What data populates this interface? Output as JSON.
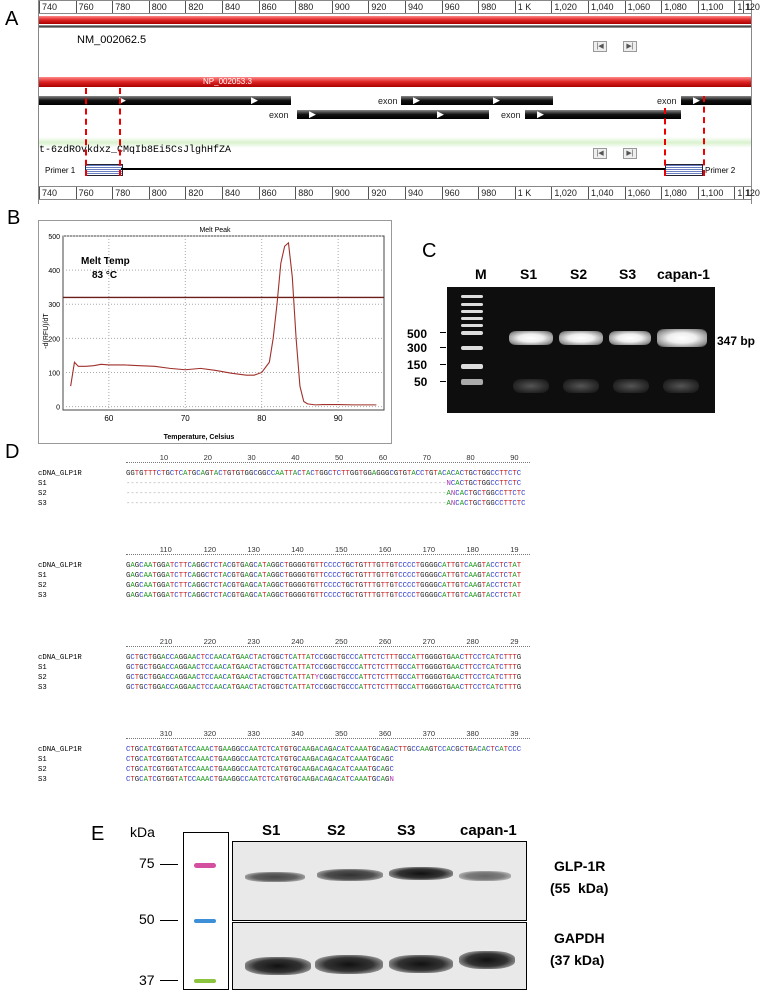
{
  "panel_labels": {
    "a": "A",
    "b": "B",
    "c": "C",
    "d": "D",
    "e": "E"
  },
  "panelA": {
    "ruler_ticks": [
      "740",
      "760",
      "780",
      "800",
      "820",
      "840",
      "860",
      "880",
      "900",
      "920",
      "940",
      "960",
      "980",
      "1 K",
      "1,020",
      "1,040",
      "1,060",
      "1,080",
      "1,100",
      "1,120"
    ],
    "ruler_edge_tick": "1",
    "transcript_label": "NM_002062.5",
    "protein_label": "NP_002053.3",
    "exon_label": "exon",
    "primer_track_label": "t-6zdROvkdxz_CMqIb8Ei5CsJlghHfZA",
    "primer1": "Primer 1",
    "primer2": "Primer 2"
  },
  "panelB": {
    "title": "Melt Peak",
    "xlabel": "Temperature, Celsius",
    "ylabel": "-d(RFU)/dT",
    "annotation_line1": "Melt Temp",
    "annotation_line2": "83 °C"
  },
  "chart_data": {
    "type": "line",
    "title": "Melt Peak",
    "xlabel": "Temperature, Celsius",
    "ylabel": "-d(RFU)/dT",
    "xlim": [
      54,
      96
    ],
    "ylim": [
      -10,
      500
    ],
    "xticks": [
      60,
      70,
      80,
      90
    ],
    "yticks": [
      0,
      100,
      200,
      300,
      400,
      500
    ],
    "threshold": 320,
    "series": [
      {
        "color": "#a0302a",
        "x": [
          55,
          55.5,
          56,
          57,
          58,
          59,
          60,
          62,
          64,
          66,
          68,
          70,
          72,
          74,
          76,
          78,
          79,
          80,
          81,
          81.5,
          82,
          82.5,
          83,
          83.5,
          84,
          84.5,
          85,
          85.5,
          86,
          87,
          88,
          90,
          92,
          95
        ],
        "y": [
          60,
          130,
          118,
          118,
          120,
          124,
          122,
          122,
          120,
          118,
          112,
          108,
          112,
          106,
          98,
          92,
          92,
          100,
          130,
          200,
          300,
          420,
          470,
          480,
          380,
          200,
          60,
          15,
          8,
          5,
          6,
          6,
          5,
          5
        ]
      }
    ]
  },
  "panelC": {
    "lanes": [
      "M",
      "S1",
      "S2",
      "S3",
      "capan-1"
    ],
    "markers": [
      "500",
      "300",
      "150",
      "50"
    ],
    "band_size": "347 bp"
  },
  "panelD": {
    "blocks": [
      {
        "ruler_numbers": [
          "10",
          "20",
          "30",
          "40",
          "50",
          "60",
          "70",
          "80",
          "90"
        ],
        "rows": [
          {
            "name": "cDNA_GLP1R",
            "seq": "GGTGTTTCTGCTCATGCAGTACTGTGTGGCGGCCAATTACTACTGGCTCTTGGTGGAGGGCGTGTACCTGTACACACTGCTGGCCTTCTC"
          },
          {
            "name": "S1",
            "seq": "-------------------------------------------------------------------------NCACTGCTGGCCTTCTC"
          },
          {
            "name": "S2",
            "seq": "-------------------------------------------------------------------------ANCACTGCTGGCCTTCTC"
          },
          {
            "name": "S3",
            "seq": "-------------------------------------------------------------------------ANCACTGCTGGCCTTCTC"
          }
        ]
      },
      {
        "ruler_numbers": [
          "110",
          "120",
          "130",
          "140",
          "150",
          "160",
          "170",
          "180",
          "19"
        ],
        "rows": [
          {
            "name": "cDNA_GLP1R",
            "seq": "GAGCAATGGATCTTCAGGCTCTACGTGAGCATAGGCTGGGGTGTTCCCCTGCTGTTTGTTGTCCCCTGGGGCATTGTCAAGTACCTCTAT"
          },
          {
            "name": "S1",
            "seq": "GAGCAATGGATCTTCAGGCTCTACGTGAGCATAGGCTGGGGTGTTCCCCTGCTGTTTGTTGTCCCCTGGGGCATTGTCAAGTACCTCTAT"
          },
          {
            "name": "S2",
            "seq": "GAGCAATGGATCTTCAGGCTCTACGTGAGCATAGGCTGGGGTGTTCCCCTGCTGTTTGTTGTCCCCTGGGGCATTGTCAAGTACCTCTAT"
          },
          {
            "name": "S3",
            "seq": "GAGCAATGGATCTTCAGGCTCTACGTGAGCATAGGCTGGGGTGTTCCCCTGCTGTTTGTTGTCCCCTGGGGCATTGTCAAGTACCTCTAT"
          }
        ]
      },
      {
        "ruler_numbers": [
          "210",
          "220",
          "230",
          "240",
          "250",
          "260",
          "270",
          "280",
          "29"
        ],
        "rows": [
          {
            "name": "cDNA_GLP1R",
            "seq": "GCTGCTGGACCAGGAACTCCAACATGAACTACTGGCTCATTATCCGGCTGCCCATTCTCTTTGCCATTGGGGTGAACTTCCTCATCTTTG"
          },
          {
            "name": "S1",
            "seq": "GCTGCTGGACCAGGAACTCCAACATGAACTACTGGCTCATTATCCGGCTGCCCATTCTCTTTGCCATTGGGGTGAACTTCCTCATCTTTG"
          },
          {
            "name": "S2",
            "seq": "GCTGCTGGACCAGGAACTCCAACATGAACTACTGGCTCATTATYCGGCTGCCCATTCTCTTTGCCATTGGGGTGAACTTCCTCATCTTTG"
          },
          {
            "name": "S3",
            "seq": "GCTGCTGGACCAGGAACTCCAACATGAACTACTGGCTCATTATCCGGCTGCCCATTCTCTTTGCCATTGGGGTGAACTTCCTCATCTTTG"
          }
        ]
      },
      {
        "ruler_numbers": [
          "310",
          "320",
          "330",
          "340",
          "350",
          "360",
          "370",
          "380",
          "39"
        ],
        "rows": [
          {
            "name": "cDNA_GLP1R",
            "seq": "CTGCATCGTGGTATCCAAACTGAAGGCCAATCTCATGTGCAAGACAGACATCAAATGCAGACTTGCCAAGTCCACGCTGACACTCATCCC"
          },
          {
            "name": "S1",
            "seq": "CTGCATCGTGGTATCCAAACTGAAGGCCAATCTCATGTGCAAGACAGACATCAAATGCAGC"
          },
          {
            "name": "S2",
            "seq": "CTGCATCGTGGTATCCAAACTGAAGGCCAATCTCATGTGCAAGACAGACATCAAATGCAGC"
          },
          {
            "name": "S3",
            "seq": "CTGCATCGTGGTATCCAAACTGAAGGCCAATCTCATGTGCAAGACAGACATCAAATGCAGN"
          }
        ]
      }
    ]
  },
  "panelE": {
    "kda_label": "kDa",
    "markers": [
      "75",
      "50",
      "37"
    ],
    "lanes": [
      "S1",
      "S2",
      "S3",
      "capan-1"
    ],
    "glp_line1": "GLP-1R",
    "glp_line2": "(55  kDa)",
    "gapdh_line1": "GAPDH",
    "gapdh_line2": "(37 kDa)"
  }
}
